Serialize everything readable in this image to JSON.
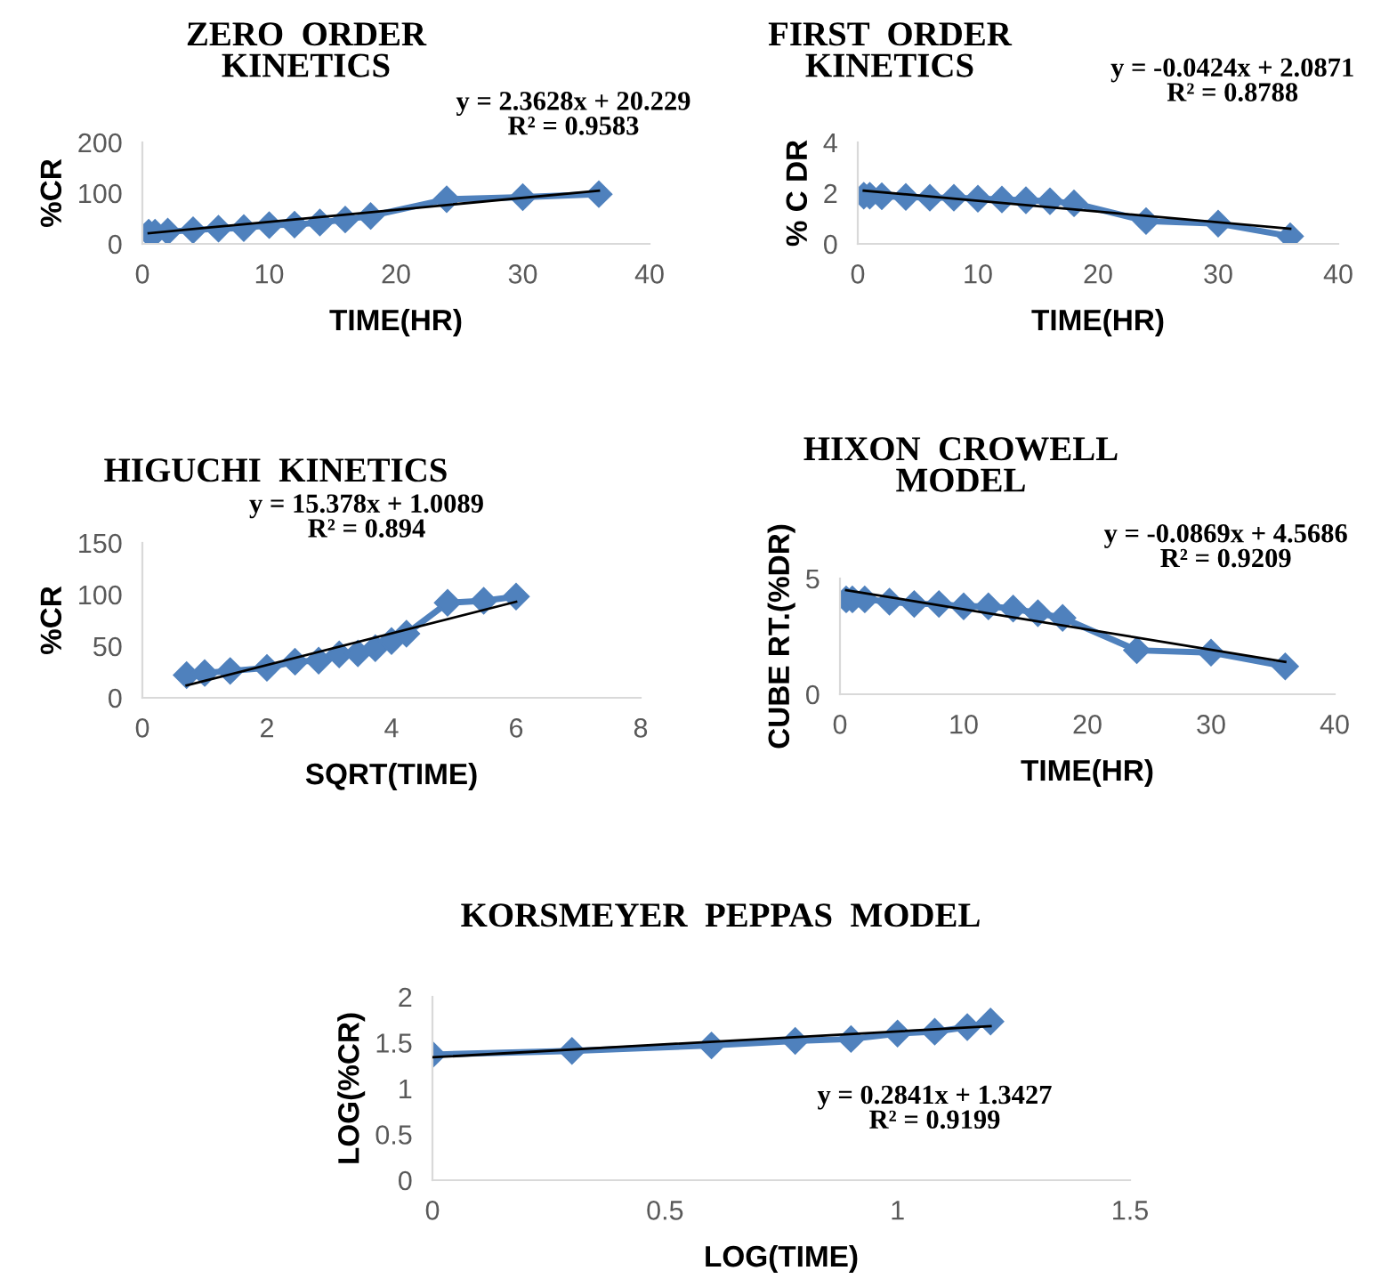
{
  "chart_data": [
    {
      "type": "line",
      "title": "ZERO  ORDER\nKINETICS",
      "xlabel": "TIME(HR)",
      "ylabel": "%CR",
      "xlim": [
        0,
        40
      ],
      "xticks": [
        0,
        10,
        20,
        30,
        40
      ],
      "ylim": [
        0,
        200
      ],
      "yticks": [
        0,
        100,
        200
      ],
      "annotations": [
        "y = 2.3628x + 20.229\nR² = 0.9583"
      ],
      "series": [
        {
          "color": "#4f81bd",
          "marker": "diamond",
          "x": [
            0.5,
            1,
            2,
            4,
            6,
            8,
            10,
            12,
            14,
            16,
            18,
            24,
            30,
            36
          ],
          "values": [
            22,
            22,
            24,
            27,
            30,
            31,
            37,
            38,
            42,
            48,
            55,
            88,
            92,
            98
          ]
        },
        {
          "color": "#000000",
          "marker": "none",
          "x": [
            0.5,
            36
          ],
          "values": [
            21,
            105
          ]
        }
      ]
    },
    {
      "type": "line",
      "title": "FIRST  ORDER\nKINETICS",
      "xlabel": "TIME(HR)",
      "ylabel": "% C DR",
      "xlim": [
        0,
        40
      ],
      "xticks": [
        0,
        10,
        20,
        30,
        40
      ],
      "ylim": [
        0,
        4
      ],
      "yticks": [
        0,
        2,
        4
      ],
      "annotations": [
        "y = -0.0424x + 2.0871\nR² = 0.8788"
      ],
      "series": [
        {
          "color": "#4f81bd",
          "marker": "diamond",
          "x": [
            0.5,
            1,
            2,
            4,
            6,
            8,
            10,
            12,
            14,
            16,
            18,
            24,
            30,
            36
          ],
          "values": [
            1.9,
            1.9,
            1.88,
            1.85,
            1.82,
            1.82,
            1.78,
            1.75,
            1.72,
            1.68,
            1.6,
            0.9,
            0.8,
            0.3
          ]
        },
        {
          "color": "#000000",
          "marker": "none",
          "x": [
            0.5,
            36
          ],
          "values": [
            2.1,
            0.6
          ]
        }
      ]
    },
    {
      "type": "line",
      "title": "HIGUCHI  KINETICS",
      "xlabel": "SQRT(TIME)",
      "ylabel": "%CR",
      "xlim": [
        0,
        8
      ],
      "xticks": [
        0,
        2,
        4,
        6,
        8
      ],
      "ylim": [
        0,
        150
      ],
      "yticks": [
        0,
        50,
        100,
        150
      ],
      "annotations": [
        "y = 15.378x + 1.0089\nR² = 0.894"
      ],
      "series": [
        {
          "color": "#4f81bd",
          "marker": "diamond",
          "x": [
            0.71,
            1,
            1.41,
            2,
            2.45,
            2.83,
            3.16,
            3.46,
            3.74,
            4,
            4.24,
            4.9,
            5.48,
            6
          ],
          "values": [
            22,
            24,
            26,
            29,
            35,
            36,
            42,
            43,
            48,
            55,
            62,
            92,
            94,
            98
          ]
        },
        {
          "color": "#000000",
          "marker": "none",
          "x": [
            0.71,
            6
          ],
          "values": [
            12,
            93
          ]
        }
      ]
    },
    {
      "type": "line",
      "title": "HIXON  CROWELL\nMODEL",
      "xlabel": "TIME(HR)",
      "ylabel": "CUBE RT.(%DR)",
      "xlim": [
        0,
        40
      ],
      "xticks": [
        0,
        10,
        20,
        30,
        40
      ],
      "ylim": [
        0,
        5
      ],
      "yticks": [
        0,
        5
      ],
      "annotations": [
        "y = -0.0869x + 4.5686\nR² = 0.9209"
      ],
      "series": [
        {
          "color": "#4f81bd",
          "marker": "diamond",
          "x": [
            0.5,
            1,
            2,
            4,
            6,
            8,
            10,
            12,
            14,
            16,
            18,
            24,
            30,
            36
          ],
          "values": [
            4.1,
            4.1,
            4.1,
            4.0,
            3.9,
            3.9,
            3.8,
            3.8,
            3.7,
            3.5,
            3.3,
            1.9,
            1.8,
            1.2
          ]
        },
        {
          "color": "#000000",
          "marker": "none",
          "x": [
            0.5,
            36
          ],
          "values": [
            4.5,
            1.4
          ]
        }
      ]
    },
    {
      "type": "line",
      "title": "KORSMEYER  PEPPAS  MODEL",
      "xlabel": "LOG(TIME)",
      "ylabel": "LOG(%CR)",
      "xlim": [
        0,
        1.5
      ],
      "xticks": [
        0,
        0.5,
        1,
        1.5
      ],
      "ylim": [
        0,
        2
      ],
      "yticks": [
        0,
        0.5,
        1,
        1.5,
        2
      ],
      "annotations": [
        "y = 0.2841x + 1.3427\nR² = 0.9199"
      ],
      "series": [
        {
          "color": "#4f81bd",
          "marker": "diamond",
          "x": [
            0,
            0.3,
            0.6,
            0.78,
            0.9,
            1,
            1.08,
            1.15,
            1.2
          ],
          "values": [
            1.37,
            1.41,
            1.47,
            1.52,
            1.54,
            1.6,
            1.62,
            1.67,
            1.73
          ]
        },
        {
          "color": "#000000",
          "marker": "none",
          "x": [
            0,
            1.2
          ],
          "values": [
            1.34,
            1.68
          ]
        }
      ]
    }
  ]
}
